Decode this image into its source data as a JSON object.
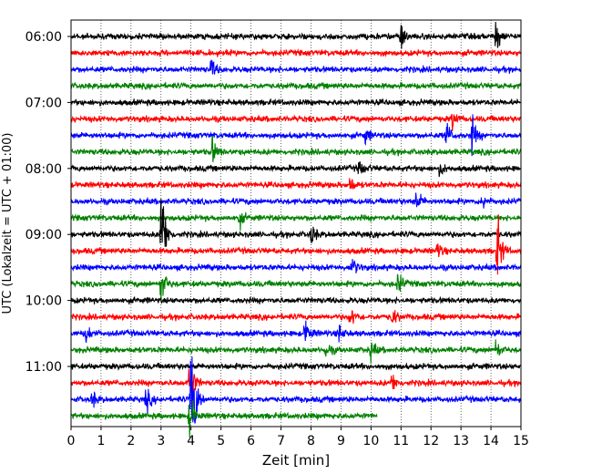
{
  "chart_data": {
    "type": "line",
    "chart_kind": "seismogram helicorder",
    "xlabel": "Zeit  [min]",
    "ylabel": "UTC (Lokalzeit = UTC + 01:00)",
    "xlim": [
      0,
      15
    ],
    "x_ticks": [
      "0",
      "1",
      "2",
      "3",
      "4",
      "5",
      "6",
      "7",
      "8",
      "9",
      "10",
      "11",
      "12",
      "13",
      "14",
      "15"
    ],
    "y_tick_labels": [
      "06:00",
      "07:00",
      "08:00",
      "09:00",
      "10:00",
      "11:00"
    ],
    "y_tick_line_index": [
      0,
      4,
      8,
      12,
      16,
      20
    ],
    "grid": "vertical dotted at each minute",
    "color_cycle": [
      "#000000",
      "#ff0000",
      "#0000ff",
      "#008000"
    ],
    "trace_count": 24,
    "last_trace_end_min": 10.2,
    "events": [
      {
        "line": 0,
        "t": 11.0,
        "amp": 1.0
      },
      {
        "line": 0,
        "t": 14.15,
        "amp": 1.2
      },
      {
        "line": 2,
        "t": 4.65,
        "amp": 0.8
      },
      {
        "line": 5,
        "t": 12.7,
        "amp": 0.7
      },
      {
        "line": 6,
        "t": 12.5,
        "amp": 1.0
      },
      {
        "line": 6,
        "t": 13.35,
        "amp": 1.3
      },
      {
        "line": 6,
        "t": 9.8,
        "amp": 0.6
      },
      {
        "line": 7,
        "t": 4.7,
        "amp": 1.0
      },
      {
        "line": 8,
        "t": 9.6,
        "amp": 0.6
      },
      {
        "line": 8,
        "t": 12.3,
        "amp": 0.5
      },
      {
        "line": 9,
        "t": 9.3,
        "amp": 0.6
      },
      {
        "line": 10,
        "t": 11.5,
        "amp": 0.9
      },
      {
        "line": 10,
        "t": 13.7,
        "amp": 0.6
      },
      {
        "line": 11,
        "t": 5.6,
        "amp": 0.6
      },
      {
        "line": 12,
        "t": 3.0,
        "amp": 4.0
      },
      {
        "line": 12,
        "t": 8.0,
        "amp": 0.8
      },
      {
        "line": 13,
        "t": 14.2,
        "amp": 2.5
      },
      {
        "line": 13,
        "t": 12.2,
        "amp": 0.6
      },
      {
        "line": 14,
        "t": 9.35,
        "amp": 0.8
      },
      {
        "line": 15,
        "t": 3.0,
        "amp": 1.5
      },
      {
        "line": 15,
        "t": 10.9,
        "amp": 0.8
      },
      {
        "line": 17,
        "t": 9.3,
        "amp": 0.8
      },
      {
        "line": 17,
        "t": 10.7,
        "amp": 0.6
      },
      {
        "line": 18,
        "t": 7.8,
        "amp": 1.0
      },
      {
        "line": 18,
        "t": 0.5,
        "amp": 0.6
      },
      {
        "line": 18,
        "t": 8.9,
        "amp": 0.7
      },
      {
        "line": 19,
        "t": 8.5,
        "amp": 0.6
      },
      {
        "line": 19,
        "t": 10.0,
        "amp": 0.7
      },
      {
        "line": 19,
        "t": 14.15,
        "amp": 0.7
      },
      {
        "line": 21,
        "t": 3.95,
        "amp": 2.0
      },
      {
        "line": 21,
        "t": 10.7,
        "amp": 0.7
      },
      {
        "line": 22,
        "t": 4.0,
        "amp": 6.0
      },
      {
        "line": 22,
        "t": 2.5,
        "amp": 0.8
      },
      {
        "line": 22,
        "t": 0.7,
        "amp": 0.6
      },
      {
        "line": 23,
        "t": 3.95,
        "amp": 1.5
      }
    ]
  }
}
